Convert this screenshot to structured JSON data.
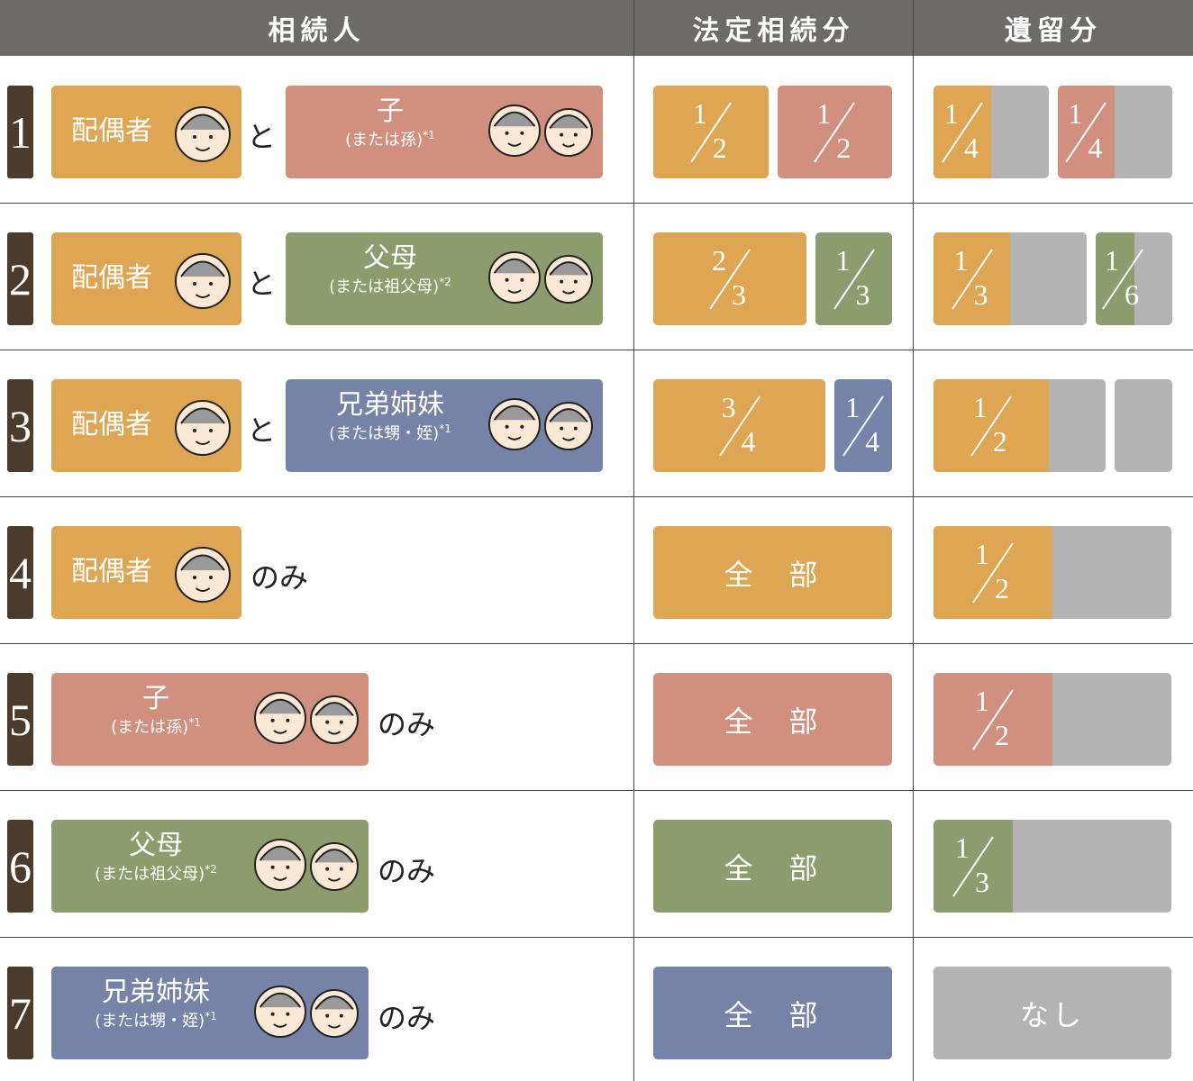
{
  "header": [
    "相続人",
    "法定相続分",
    "遺留分"
  ],
  "rows": [
    {
      "no": "1",
      "heirs": [
        {
          "name": "配偶者",
          "color": "#dea553"
        },
        {
          "name": "子",
          "note": "(または孫)",
          "mark": "*1",
          "color": "#d18f7e"
        }
      ],
      "connector": "と",
      "legal": [
        {
          "num": "1",
          "den": "2"
        },
        {
          "num": "1",
          "den": "2"
        }
      ],
      "reserved": [
        {
          "num": "1",
          "den": "4"
        },
        {
          "num": "1",
          "den": "4"
        }
      ]
    },
    {
      "no": "2",
      "heirs": [
        {
          "name": "配偶者",
          "color": "#dea553"
        },
        {
          "name": "父母",
          "note": "(または祖父母)",
          "mark": "*2",
          "color": "#8c9c6c"
        }
      ],
      "connector": "と",
      "legal": [
        {
          "num": "2",
          "den": "3"
        },
        {
          "num": "1",
          "den": "3"
        }
      ],
      "reserved": [
        {
          "num": "1",
          "den": "3"
        },
        {
          "num": "1",
          "den": "6"
        }
      ]
    },
    {
      "no": "3",
      "heirs": [
        {
          "name": "配偶者",
          "color": "#dea553"
        },
        {
          "name": "兄弟姉妹",
          "note": "(または甥・姪)",
          "mark": "*1",
          "color": "#7683a8"
        }
      ],
      "connector": "と",
      "legal": [
        {
          "num": "3",
          "den": "4"
        },
        {
          "num": "1",
          "den": "4"
        }
      ],
      "reserved": [
        {
          "num": "1",
          "den": "2"
        }
      ]
    },
    {
      "no": "4",
      "heirs": [
        {
          "name": "配偶者",
          "color": "#dea553"
        }
      ],
      "connector": "のみ",
      "legal_text": "全　部",
      "reserved": [
        {
          "num": "1",
          "den": "2"
        }
      ]
    },
    {
      "no": "5",
      "heirs": [
        {
          "name": "子",
          "note": "(または孫)",
          "mark": "*1",
          "color": "#d18f7e"
        }
      ],
      "connector": "のみ",
      "legal_text": "全　部",
      "reserved": [
        {
          "num": "1",
          "den": "2"
        }
      ]
    },
    {
      "no": "6",
      "heirs": [
        {
          "name": "父母",
          "note": "(または祖父母)",
          "mark": "*2",
          "color": "#8c9c6c"
        }
      ],
      "connector": "のみ",
      "legal_text": "全　部",
      "reserved": [
        {
          "num": "1",
          "den": "3"
        }
      ]
    },
    {
      "no": "7",
      "heirs": [
        {
          "name": "兄弟姉妹",
          "note": "(または甥・姪)",
          "mark": "*1",
          "color": "#7683a8"
        }
      ],
      "connector": "のみ",
      "legal_text": "全　部",
      "reserved": [],
      "reserved_text": "なし"
    }
  ]
}
